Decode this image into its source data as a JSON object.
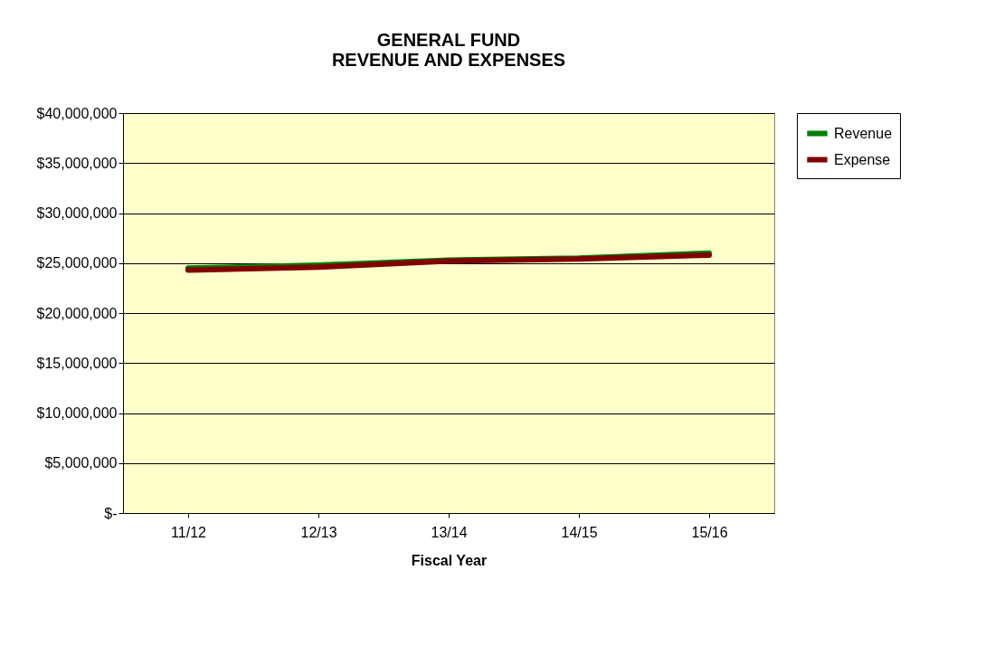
{
  "chart_data": {
    "type": "line",
    "title": [
      "GENERAL FUND",
      "REVENUE AND EXPENSES"
    ],
    "xlabel": "Fiscal Year",
    "categories": [
      "11/12",
      "12/13",
      "13/14",
      "14/15",
      "15/16"
    ],
    "series": [
      {
        "name": "Revenue",
        "color": "#008000",
        "values": [
          24500000,
          24800000,
          25300000,
          25500000,
          26000000
        ]
      },
      {
        "name": "Expense",
        "color": "#800000",
        "values": [
          24300000,
          24600000,
          25200000,
          25400000,
          25800000
        ]
      }
    ],
    "ylim": [
      0,
      40000000
    ],
    "yticks": [
      {
        "value": 0,
        "label": "$-"
      },
      {
        "value": 5000000,
        "label": "$5,000,000"
      },
      {
        "value": 10000000,
        "label": "$10,000,000"
      },
      {
        "value": 15000000,
        "label": "$15,000,000"
      },
      {
        "value": 20000000,
        "label": "$20,000,000"
      },
      {
        "value": 25000000,
        "label": "$25,000,000"
      },
      {
        "value": 30000000,
        "label": "$30,000,000"
      },
      {
        "value": 35000000,
        "label": "$35,000,000"
      },
      {
        "value": 40000000,
        "label": "$40,000,000"
      }
    ],
    "grid": "y",
    "legend": "right",
    "marker": "none",
    "line_style": "solid"
  }
}
